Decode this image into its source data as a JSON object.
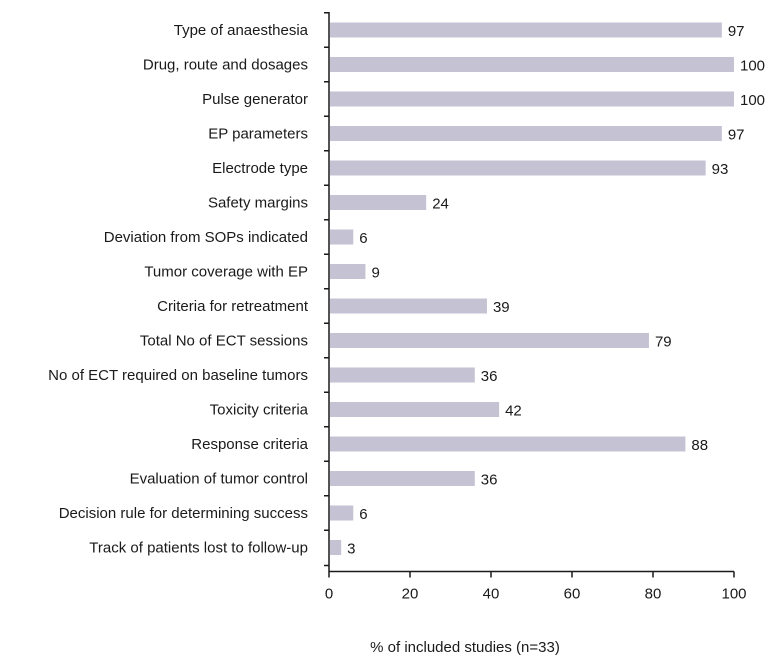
{
  "chart_data": {
    "type": "bar",
    "orientation": "horizontal",
    "categories": [
      "Type of anaesthesia",
      "Drug, route and dosages",
      "Pulse generator",
      "EP parameters",
      "Electrode type",
      "Safety margins",
      "Deviation from SOPs indicated",
      "Tumor coverage with EP",
      "Criteria for retreatment",
      "Total No of ECT sessions",
      "No of ECT required on baseline tumors",
      "Toxicity criteria",
      "Response criteria",
      "Evaluation of tumor control",
      "Decision rule for determining success",
      "Track of patients lost to follow-up"
    ],
    "values": [
      97,
      100,
      100,
      97,
      93,
      24,
      6,
      9,
      39,
      79,
      36,
      42,
      88,
      36,
      6,
      3
    ],
    "xlabel": "% of included studies (n=33)",
    "ylabel": "",
    "xlim": [
      0,
      100
    ],
    "xticks": [
      0,
      20,
      40,
      60,
      80,
      100
    ],
    "grid": false,
    "bar_color": "#c5c3d3"
  }
}
